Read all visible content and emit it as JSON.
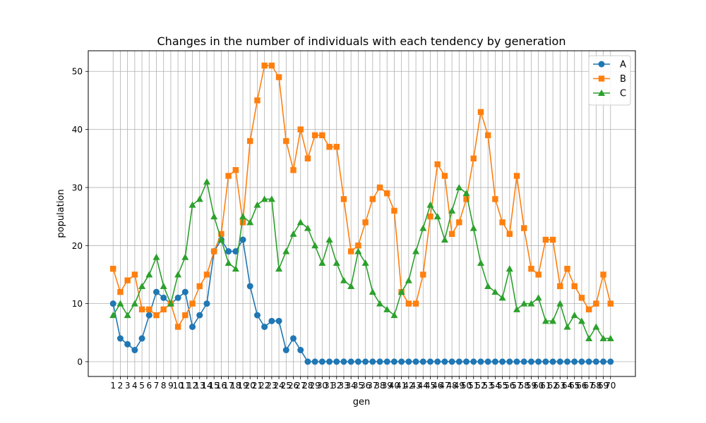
{
  "chart_data": {
    "type": "line",
    "title": "Changes in the number of individuals with each tendency by generation",
    "xlabel": "gen",
    "ylabel": "population",
    "x": [
      1,
      2,
      3,
      4,
      5,
      6,
      7,
      8,
      9,
      10,
      11,
      12,
      13,
      14,
      15,
      16,
      17,
      18,
      19,
      20,
      21,
      22,
      23,
      24,
      25,
      26,
      27,
      28,
      29,
      30,
      31,
      32,
      33,
      34,
      35,
      36,
      37,
      38,
      39,
      40,
      41,
      42,
      43,
      44,
      45,
      46,
      47,
      48,
      49,
      50,
      51,
      52,
      53,
      54,
      55,
      56,
      57,
      58,
      59,
      60,
      61,
      62,
      63,
      64,
      65,
      66,
      67,
      68,
      69,
      70
    ],
    "xlim": [
      -2.45,
      73.45
    ],
    "ylim": [
      -2.55,
      53.55
    ],
    "yticks": [
      0,
      10,
      20,
      30,
      40,
      50
    ],
    "grid": true,
    "legend": "top-right",
    "series": [
      {
        "name": "A",
        "color": "#1f77b4",
        "marker": "circle",
        "values": [
          10,
          4,
          3,
          2,
          4,
          8,
          12,
          11,
          10,
          11,
          12,
          6,
          8,
          10,
          19,
          21,
          19,
          19,
          21,
          13,
          8,
          6,
          7,
          7,
          2,
          4,
          2,
          0,
          0,
          0,
          0,
          0,
          0,
          0,
          0,
          0,
          0,
          0,
          0,
          0,
          0,
          0,
          0,
          0,
          0,
          0,
          0,
          0,
          0,
          0,
          0,
          0,
          0,
          0,
          0,
          0,
          0,
          0,
          0,
          0,
          0,
          0,
          0,
          0,
          0,
          0,
          0,
          0,
          0,
          0
        ]
      },
      {
        "name": "B",
        "color": "#ff7f0e",
        "marker": "square",
        "values": [
          16,
          12,
          14,
          15,
          9,
          9,
          8,
          9,
          10,
          6,
          8,
          10,
          13,
          15,
          19,
          22,
          32,
          33,
          24,
          38,
          45,
          51,
          51,
          49,
          38,
          33,
          40,
          35,
          39,
          39,
          37,
          37,
          28,
          19,
          20,
          24,
          28,
          30,
          29,
          26,
          12,
          10,
          10,
          15,
          25,
          34,
          32,
          22,
          24,
          28,
          35,
          43,
          39,
          28,
          24,
          22,
          32,
          23,
          16,
          15,
          21,
          21,
          13,
          16,
          13,
          11,
          9,
          10,
          15,
          10
        ]
      },
      {
        "name": "C",
        "color": "#2ca02c",
        "marker": "triangle",
        "values": [
          8,
          10,
          8,
          10,
          13,
          15,
          18,
          13,
          10,
          15,
          18,
          27,
          28,
          31,
          25,
          21,
          17,
          16,
          25,
          24,
          27,
          28,
          28,
          16,
          19,
          22,
          24,
          23,
          20,
          17,
          21,
          17,
          14,
          13,
          19,
          17,
          12,
          10,
          9,
          8,
          12,
          14,
          19,
          23,
          27,
          25,
          21,
          26,
          30,
          29,
          23,
          17,
          13,
          12,
          11,
          16,
          9,
          10,
          10,
          11,
          7,
          7,
          10,
          6,
          8,
          7,
          4,
          6,
          4,
          4
        ]
      }
    ]
  }
}
